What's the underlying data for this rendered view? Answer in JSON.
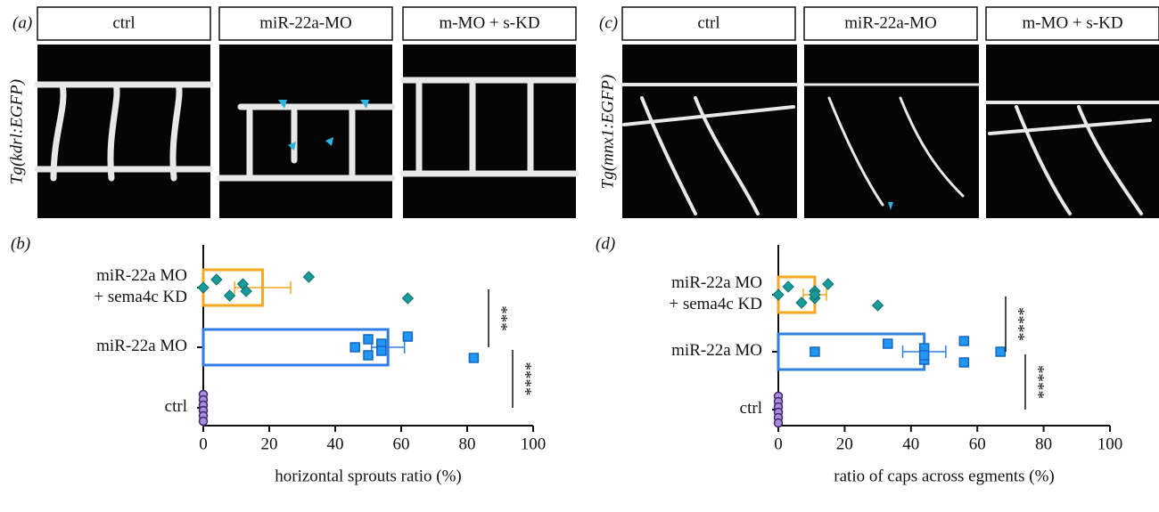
{
  "panels": [
    {
      "label": "(a)",
      "side_label": "Tg(kdrl:EGFP)",
      "headers": [
        "ctrl",
        "miR-22a-MO",
        "m-MO + s-KD"
      ]
    },
    {
      "label": "(c)",
      "side_label": "Tg(mnx1:EGFP)",
      "headers": [
        "ctrl",
        "miR-22a-MO",
        "m-MO + s-KD"
      ]
    }
  ],
  "chart_data": [
    {
      "type": "bar",
      "orientation": "horizontal",
      "panel_label": "(b)",
      "categories": [
        [
          "miR-22a MO",
          "+ sema4c KD"
        ],
        [
          "miR-22a MO"
        ],
        [
          "ctrl"
        ]
      ],
      "values": [
        18,
        56,
        0
      ],
      "errors": [
        8.5,
        5,
        0
      ],
      "points": [
        [
          0,
          4,
          8,
          12,
          13,
          32,
          62
        ],
        [
          46,
          50,
          50,
          54,
          54,
          62,
          82
        ],
        [
          0,
          0,
          0,
          0,
          0,
          0
        ]
      ],
      "colors": [
        "#f5a623",
        "#2f7de1",
        "#5b3a8c"
      ],
      "point_colors": [
        "#1a9a9a",
        "#2196f3",
        "#a98fd6"
      ],
      "markers": [
        "diamond",
        "square",
        "circle"
      ],
      "xlabel": "horizontal sprouts ratio (%)",
      "xlim": [
        0,
        100
      ],
      "xticks": [
        0,
        20,
        40,
        60,
        80,
        100
      ],
      "annotations": [
        "***",
        "****"
      ]
    },
    {
      "type": "bar",
      "orientation": "horizontal",
      "panel_label": "(d)",
      "categories": [
        [
          "miR-22a MO",
          "+ sema4c KD"
        ],
        [
          "miR-22a MO"
        ],
        [
          "ctrl"
        ]
      ],
      "values": [
        11,
        44,
        0
      ],
      "errors": [
        3.5,
        6.5,
        0
      ],
      "points": [
        [
          0,
          3,
          7,
          11,
          11,
          15,
          30,
          11
        ],
        [
          11,
          33,
          44,
          44,
          44,
          56,
          56,
          67
        ],
        [
          0,
          0,
          0,
          0,
          0,
          0
        ]
      ],
      "colors": [
        "#f5a623",
        "#2f7de1",
        "#5b3a8c"
      ],
      "point_colors": [
        "#1a9a9a",
        "#2196f3",
        "#a98fd6"
      ],
      "markers": [
        "diamond",
        "square",
        "circle"
      ],
      "xlabel": "ratio of caps across egments (%)",
      "xlim": [
        0,
        100
      ],
      "xticks": [
        0,
        20,
        40,
        60,
        80,
        100
      ],
      "annotations": [
        "****",
        "****"
      ]
    }
  ]
}
